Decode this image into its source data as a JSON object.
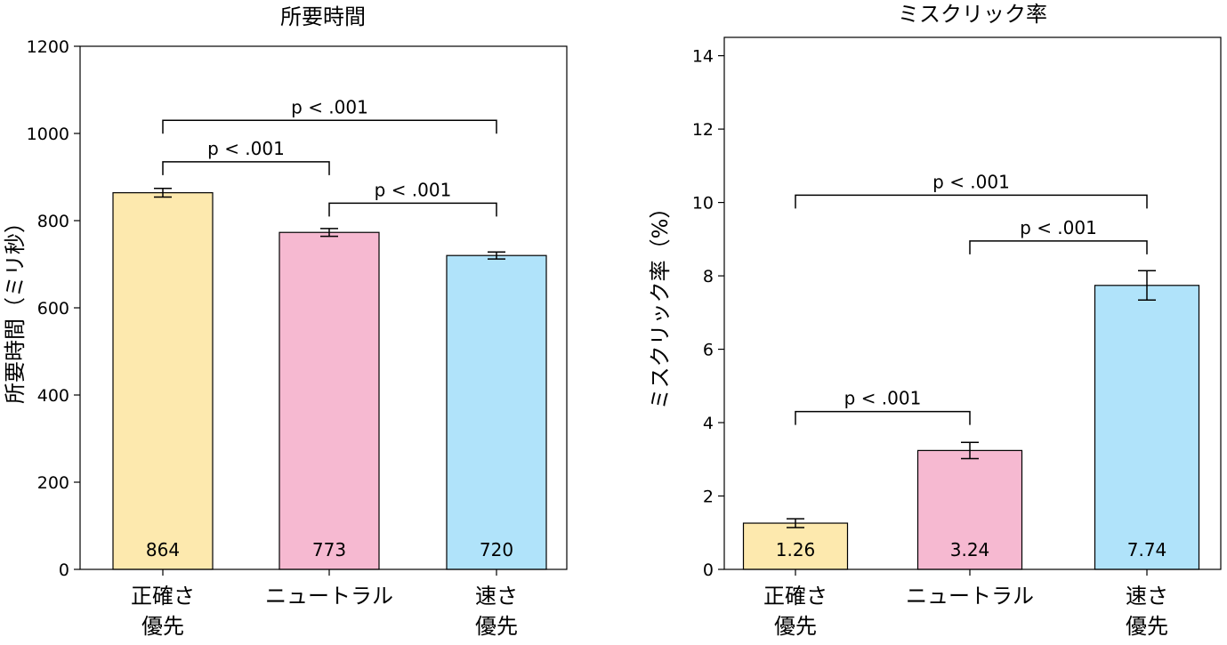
{
  "chart_data": [
    {
      "type": "bar",
      "title": "所要時間",
      "xlabel": "",
      "ylabel": "所要時間（ミリ秒）",
      "ylim": [
        0,
        1200
      ],
      "yticks": [
        0,
        200,
        400,
        600,
        800,
        1000,
        1200
      ],
      "categories": [
        [
          "正確さ",
          "優先"
        ],
        [
          "ニュートラル"
        ],
        [
          "速さ",
          "優先"
        ]
      ],
      "values": [
        864,
        773,
        720
      ],
      "errors": [
        10,
        9,
        8
      ],
      "value_labels": [
        "864",
        "773",
        "720"
      ],
      "colors": [
        "#fde9ae",
        "#f6b9d1",
        "#b0e3fa"
      ],
      "comparisons": [
        {
          "from": 0,
          "to": 2,
          "label": "p < .001",
          "y": 1030
        },
        {
          "from": 0,
          "to": 1,
          "label": "p < .001",
          "y": 935
        },
        {
          "from": 1,
          "to": 2,
          "label": "p < .001",
          "y": 840
        }
      ]
    },
    {
      "type": "bar",
      "title": "ミスクリック率",
      "xlabel": "",
      "ylabel": "ミスクリック率（%）",
      "ylim": [
        0,
        14.5
      ],
      "yticks": [
        0,
        2,
        4,
        6,
        8,
        10,
        12,
        14
      ],
      "categories": [
        [
          "正確さ",
          "優先"
        ],
        [
          "ニュートラル"
        ],
        [
          "速さ",
          "優先"
        ]
      ],
      "values": [
        1.26,
        3.24,
        7.74
      ],
      "errors": [
        0.12,
        0.22,
        0.4
      ],
      "value_labels": [
        "1.26",
        "3.24",
        "7.74"
      ],
      "colors": [
        "#fde9ae",
        "#f6b9d1",
        "#b0e3fa"
      ],
      "comparisons": [
        {
          "from": 0,
          "to": 2,
          "label": "p < .001",
          "y": 10.2
        },
        {
          "from": 1,
          "to": 2,
          "label": "p < .001",
          "y": 8.95
        },
        {
          "from": 0,
          "to": 1,
          "label": "p < .001",
          "y": 4.3
        }
      ]
    }
  ]
}
